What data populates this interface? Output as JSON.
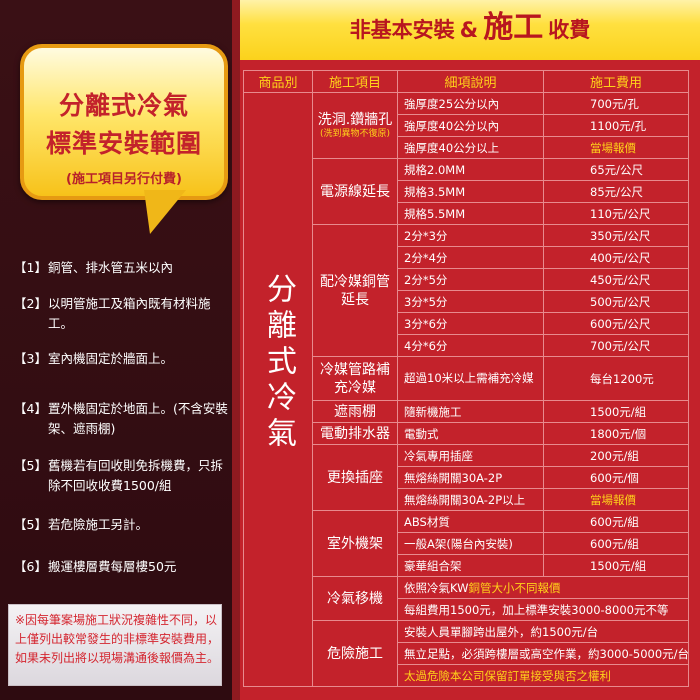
{
  "left": {
    "bubble": {
      "line1": "分離式冷氣",
      "line2": "標準安裝範圍",
      "line3": "(施工項目另行付費)"
    },
    "items": [
      {
        "num": "【1】",
        "text": "銅管、排水管五米以內"
      },
      {
        "num": "【2】",
        "text": "以明管施工及箱內既有材料施工。"
      },
      {
        "num": "【3】",
        "text": "室內機固定於牆面上。"
      },
      {
        "num": "【4】",
        "text": "置外機固定於地面上。(不含安裝架、遮雨棚)"
      },
      {
        "num": "【5】",
        "text": "舊機若有回收則免拆機費，只拆除不回收收費1500/組"
      },
      {
        "num": "【5】",
        "text": "若危險施工另計。"
      },
      {
        "num": "【6】",
        "text": "搬運樓層費每層樓50元"
      }
    ],
    "note": "※因每筆案場施工狀況複雜性不同，以上僅列出較常發生的非標準安裝費用，如果未列出將以現場溝通後報價為主。"
  },
  "header": {
    "part1": "非基本安裝",
    "amp": "&",
    "part2": "施工",
    "part3": "收費"
  },
  "table": {
    "columns": [
      "商品別",
      "施工項目",
      "細項說明",
      "施工費用"
    ],
    "category": "分離式冷氣",
    "groups": [
      {
        "item": "洗洞.鑽牆孔",
        "sub": "(洗到異物不復原)",
        "rows": [
          {
            "desc": "強厚度25公分以內",
            "fee": "700元/孔"
          },
          {
            "desc": "強厚度40公分以內",
            "fee": "1100元/孔"
          },
          {
            "desc": "強厚度40公分以上",
            "fee": "當場報價",
            "hl": true
          }
        ]
      },
      {
        "item": "電源線延長",
        "rows": [
          {
            "desc": "規格2.0MM",
            "fee": "65元/公尺"
          },
          {
            "desc": "規格3.5MM",
            "fee": "85元/公尺"
          },
          {
            "desc": "規格5.5MM",
            "fee": "110元/公尺"
          }
        ]
      },
      {
        "item": "配冷媒銅管延長",
        "rows": [
          {
            "desc": "2分*3分",
            "fee": "350元/公尺"
          },
          {
            "desc": "2分*4分",
            "fee": "400元/公尺"
          },
          {
            "desc": "2分*5分",
            "fee": "450元/公尺"
          },
          {
            "desc": "3分*5分",
            "fee": "500元/公尺"
          },
          {
            "desc": "3分*6分",
            "fee": "600元/公尺"
          },
          {
            "desc": "4分*6分",
            "fee": "700元/公尺"
          }
        ]
      },
      {
        "item": "冷媒管路補充冷媒",
        "tall": true,
        "rows": [
          {
            "desc": "超過10米以上需補充冷媒",
            "fee": "每台1200元"
          }
        ]
      },
      {
        "item": "遮雨棚",
        "rows": [
          {
            "desc": "隨新機施工",
            "fee": "1500元/組"
          }
        ]
      },
      {
        "item": "電動排水器",
        "rows": [
          {
            "desc": "電動式",
            "fee": "1800元/個"
          }
        ]
      },
      {
        "item": "更換插座",
        "rows": [
          {
            "desc": "冷氣專用插座",
            "fee": "200元/組"
          },
          {
            "desc": "無熔絲開關30A-2P",
            "fee": "600元/個"
          },
          {
            "desc": "無熔絲開關30A-2P以上",
            "fee": "當場報價",
            "hl": true
          }
        ]
      },
      {
        "item": "室外機架",
        "rows": [
          {
            "desc": "ABS材質",
            "fee": "600元/組"
          },
          {
            "desc": "一般A架(陽台內安裝)",
            "fee": "600元/組"
          },
          {
            "desc": "豪華組合架",
            "fee": "1500元/組"
          }
        ]
      },
      {
        "item": "冷氣移機",
        "rows": [
          {
            "desc": "依照冷氣KW",
            "desc_hl": "銅管大小不同報價",
            "span": true
          },
          {
            "desc": "每組費用1500元，加上標準安裝3000-8000元不等",
            "span": true
          }
        ]
      },
      {
        "item": "危險施工",
        "rows": [
          {
            "desc": "安裝人員單腳跨出屋外，約1500元/台",
            "span": true
          },
          {
            "desc": "無立足點，必須跨樓層或高空作業，約3000-5000元/台",
            "span": true
          },
          {
            "desc_hl": "太過危險本公司保留訂單接受與否之權利",
            "span": true
          }
        ]
      }
    ]
  },
  "colors": {
    "red": "#c3222b",
    "yellow": "#ffd21a",
    "maroon": "#3a0f14"
  }
}
